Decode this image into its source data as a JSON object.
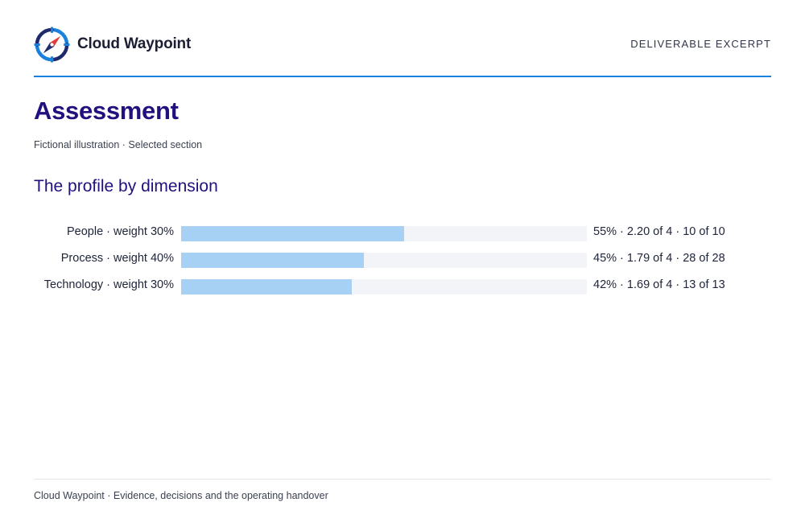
{
  "brand": {
    "name": "Cloud Waypoint",
    "logo_icon": "compass-icon",
    "colors": {
      "primary": "#1a82dc",
      "accent": "#e03a3a",
      "navy": "#1d2a6b"
    }
  },
  "header": {
    "tag": "DELIVERABLE EXCERPT"
  },
  "page": {
    "title": "Assessment",
    "subtitle": "Fictional illustration · Selected section"
  },
  "section": {
    "heading": "The profile by dimension"
  },
  "chart_data": {
    "type": "bar",
    "orientation": "horizontal",
    "categories": [
      "People · weight 30%",
      "Process · weight 40%",
      "Technology · weight 30%"
    ],
    "values": [
      55,
      45,
      42
    ],
    "value_labels": [
      "55% · 2.20 of 4 · 10 of 10",
      "45% · 1.79 of 4 · 28 of 28",
      "42% · 1.69 of 4 · 13 of 13"
    ],
    "xlim": [
      0,
      100
    ],
    "bar_color": "#a6d1f4",
    "track_color": "#f2f4f8",
    "grid": false,
    "legend": "none"
  },
  "footer": {
    "text": "Cloud Waypoint · Evidence, decisions and the operating handover"
  }
}
